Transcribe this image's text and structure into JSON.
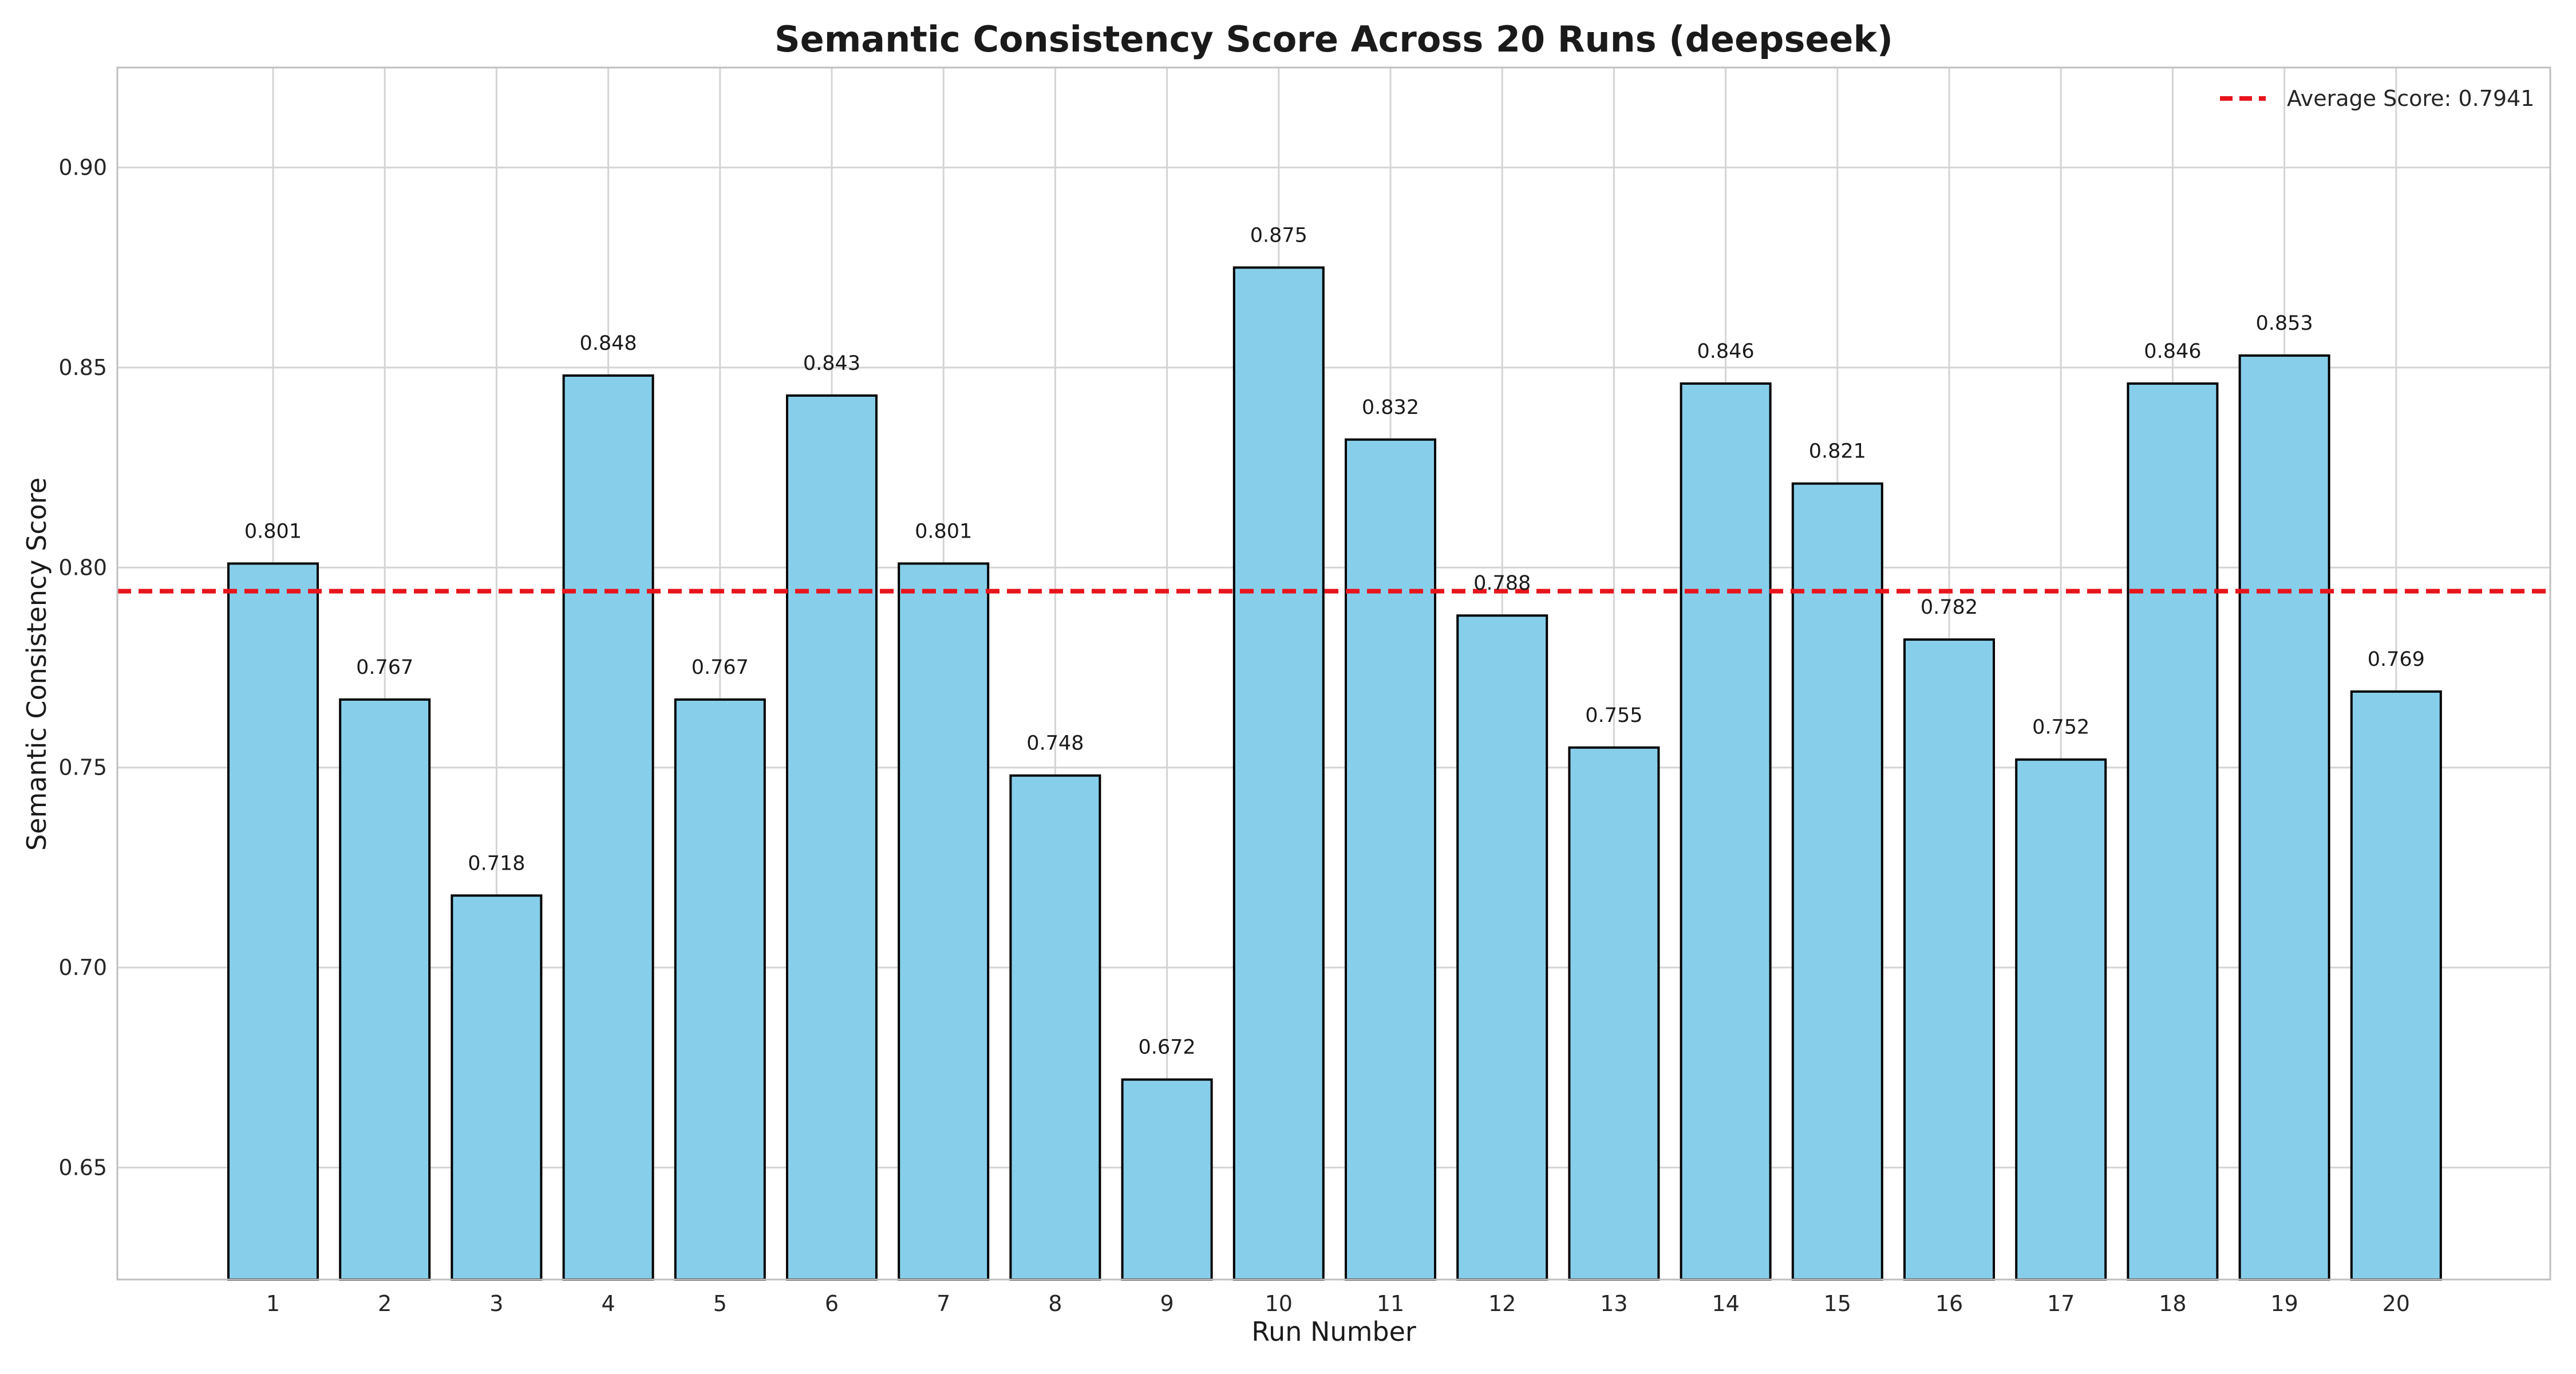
{
  "chart_data": {
    "type": "bar",
    "title": "Semantic Consistency Score Across 20 Runs (deepseek)",
    "xlabel": "Run Number",
    "ylabel": "Semantic Consistency Score",
    "categories": [
      "1",
      "2",
      "3",
      "4",
      "5",
      "6",
      "7",
      "8",
      "9",
      "10",
      "11",
      "12",
      "13",
      "14",
      "15",
      "16",
      "17",
      "18",
      "19",
      "20"
    ],
    "values": [
      0.801,
      0.767,
      0.718,
      0.848,
      0.767,
      0.843,
      0.801,
      0.748,
      0.672,
      0.875,
      0.832,
      0.788,
      0.755,
      0.846,
      0.821,
      0.782,
      0.752,
      0.846,
      0.853,
      0.769
    ],
    "value_labels": [
      "0.801",
      "0.767",
      "0.718",
      "0.848",
      "0.767",
      "0.843",
      "0.801",
      "0.748",
      "0.672",
      "0.875",
      "0.832",
      "0.788",
      "0.755",
      "0.846",
      "0.821",
      "0.782",
      "0.752",
      "0.846",
      "0.853",
      "0.769"
    ],
    "ylim": [
      0.622,
      0.925
    ],
    "yticks": [
      0.65,
      0.7,
      0.75,
      0.8,
      0.85,
      0.9
    ],
    "ytick_labels": [
      "0.65",
      "0.70",
      "0.75",
      "0.80",
      "0.85",
      "0.90"
    ],
    "average": {
      "value": 0.7941,
      "label": "Average Score: 0.7941"
    },
    "legend_position": "top-right",
    "grid": true,
    "colors": {
      "bar_fill": "#87CEEB",
      "bar_edge": "#000000",
      "average_line": "#e8141c",
      "grid": "#d4d4d4",
      "frame": "#bfbfbf"
    }
  }
}
